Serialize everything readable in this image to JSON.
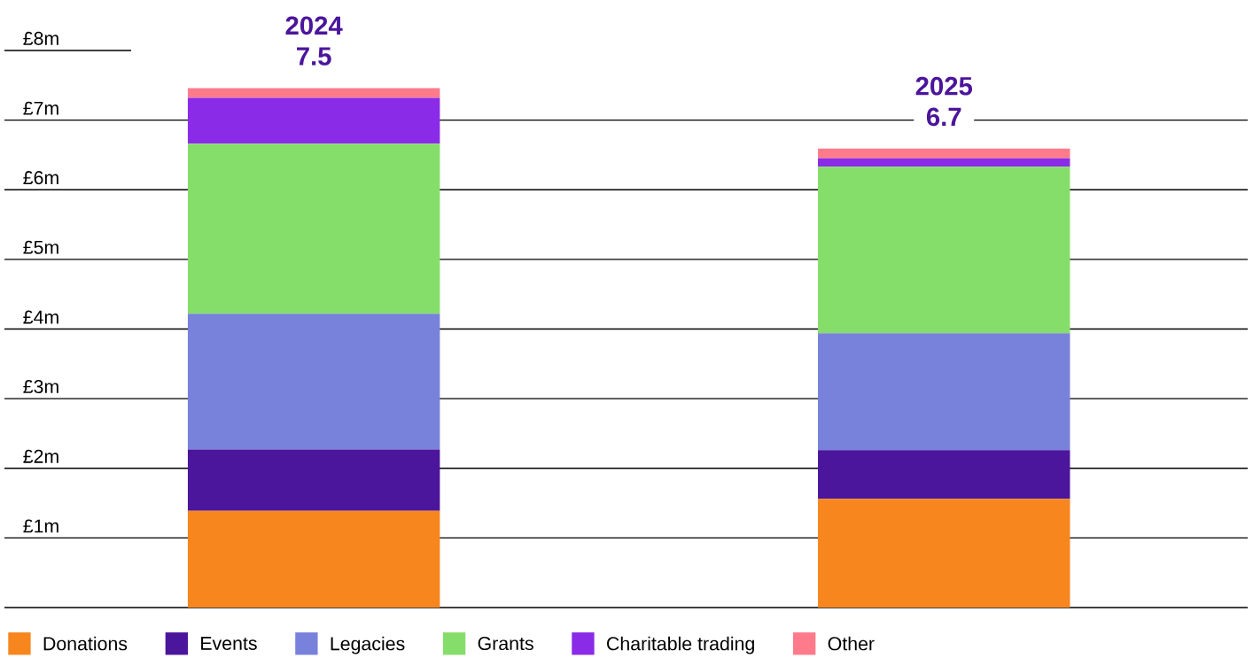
{
  "chart_data": {
    "type": "bar",
    "stacked": true,
    "categories": [
      "2024",
      "2025"
    ],
    "totals": [
      "7.5",
      "6.7"
    ],
    "series": [
      {
        "name": "Donations",
        "color": "#f7861f",
        "values": [
          1.39,
          1.56
        ]
      },
      {
        "name": "Events",
        "color": "#4b159c",
        "values": [
          0.88,
          0.7
        ]
      },
      {
        "name": "Legacies",
        "color": "#7882db",
        "values": [
          1.95,
          1.68
        ]
      },
      {
        "name": "Grants",
        "color": "#86de6a",
        "values": [
          2.44,
          2.39
        ]
      },
      {
        "name": "Charitable trading",
        "color": "#8a2be8",
        "values": [
          0.66,
          0.12
        ]
      },
      {
        "name": "Other",
        "color": "#fe7b8c",
        "values": [
          0.14,
          0.14
        ]
      }
    ],
    "ylim": [
      0,
      8
    ],
    "grid": "y",
    "yticks": [
      {
        "value": 1,
        "label": "£1m"
      },
      {
        "value": 2,
        "label": "£2m"
      },
      {
        "value": 3,
        "label": "£3m"
      },
      {
        "value": 4,
        "label": "£4m"
      },
      {
        "value": 5,
        "label": "£5m"
      },
      {
        "value": 6,
        "label": "£6m"
      },
      {
        "value": 7,
        "label": "£7m"
      },
      {
        "value": 8,
        "label": "£8m"
      }
    ],
    "legend": "bottom"
  }
}
